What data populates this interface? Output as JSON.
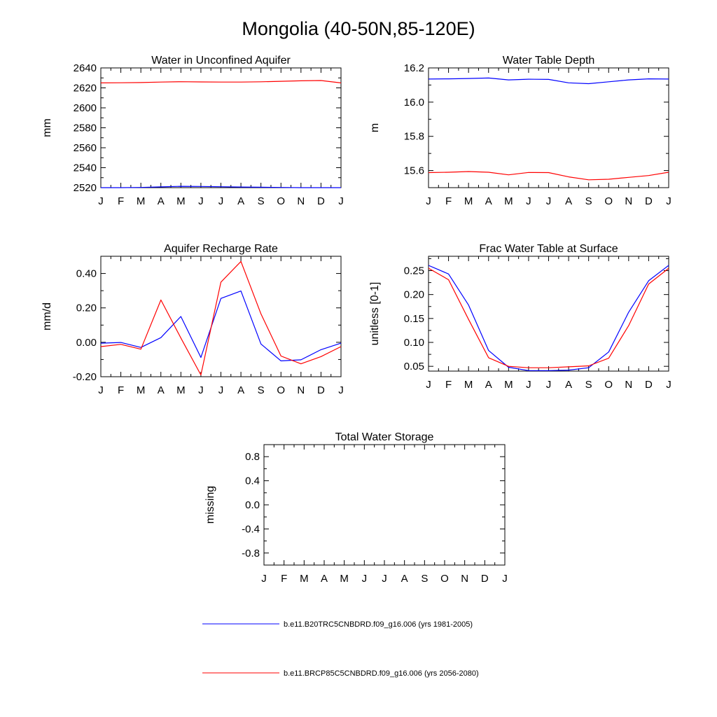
{
  "figure_title": "Mongolia (40-50N,85-120E)",
  "colors": {
    "series_1": "#0000ff",
    "series_2": "#ff0000",
    "axis": "#000000"
  },
  "legend": [
    {
      "label": "b.e11.B20TRC5CNBDRD.f09_g16.006 (yrs 1981-2005)",
      "color": "#0000ff"
    },
    {
      "label": "b.e11.BRCP85C5CNBDRD.f09_g16.006 (yrs 2056-2080)",
      "color": "#ff0000"
    }
  ],
  "chart_data": [
    {
      "type": "line",
      "title": "Water in Unconfined Aquifer",
      "xlabel": "",
      "ylabel": "mm",
      "x_tick_labels": [
        "J",
        "F",
        "M",
        "A",
        "M",
        "J",
        "J",
        "A",
        "S",
        "O",
        "N",
        "D",
        "J"
      ],
      "xlim": [
        0,
        12
      ],
      "ylim": [
        2520,
        2640
      ],
      "yticks": [
        2520,
        2540,
        2560,
        2580,
        2600,
        2620,
        2640
      ],
      "ytick_labels": [
        "2520",
        "2540",
        "2560",
        "2580",
        "2600",
        "2620",
        "2640"
      ],
      "series": [
        {
          "name": "b.e11.B20TRC5CNBDRD.f09_g16.006 (yrs 1981-2005)",
          "color": "#0000ff",
          "values": [
            2520.0,
            2520.0,
            2520.2,
            2520.8,
            2521.3,
            2521.2,
            2520.9,
            2520.6,
            2520.4,
            2520.2,
            2520.0,
            2520.0,
            2520.0
          ]
        },
        {
          "name": "b.e11.BRCP85C5CNBDRD.f09_g16.006 (yrs 2056-2080)",
          "color": "#ff0000",
          "values": [
            2625.0,
            2625.1,
            2625.3,
            2625.8,
            2626.2,
            2626.0,
            2625.8,
            2625.8,
            2626.1,
            2626.6,
            2627.1,
            2627.4,
            2625.0
          ]
        }
      ]
    },
    {
      "type": "line",
      "title": "Water Table Depth",
      "xlabel": "",
      "ylabel": "m",
      "x_tick_labels": [
        "J",
        "F",
        "M",
        "A",
        "M",
        "J",
        "J",
        "A",
        "S",
        "O",
        "N",
        "D",
        "J"
      ],
      "xlim": [
        0,
        12
      ],
      "ylim": [
        15.5,
        16.2
      ],
      "yticks": [
        15.6,
        15.8,
        16.0,
        16.2
      ],
      "ytick_labels": [
        "15.6",
        "15.8",
        "16.0",
        "16.2"
      ],
      "series": [
        {
          "name": "b.e11.B20TRC5CNBDRD.f09_g16.006 (yrs 1981-2005)",
          "color": "#0000ff",
          "values": [
            16.135,
            16.136,
            16.138,
            16.141,
            16.13,
            16.134,
            16.133,
            16.113,
            16.108,
            16.119,
            16.13,
            16.136,
            16.135
          ]
        },
        {
          "name": "b.e11.BRCP85C5CNBDRD.f09_g16.006 (yrs 2056-2080)",
          "color": "#ff0000",
          "values": [
            15.588,
            15.59,
            15.594,
            15.59,
            15.575,
            15.589,
            15.588,
            15.563,
            15.546,
            15.549,
            15.56,
            15.571,
            15.59
          ]
        }
      ]
    },
    {
      "type": "line",
      "title": "Aquifer Recharge Rate",
      "xlabel": "",
      "ylabel": "mm/d",
      "x_tick_labels": [
        "J",
        "F",
        "M",
        "A",
        "M",
        "J",
        "J",
        "A",
        "S",
        "O",
        "N",
        "D",
        "J"
      ],
      "xlim": [
        0,
        12
      ],
      "ylim": [
        -0.2,
        0.5
      ],
      "yticks": [
        -0.2,
        0.0,
        0.2,
        0.4
      ],
      "ytick_labels": [
        "-0.20",
        "0.00",
        "0.20",
        "0.40"
      ],
      "series": [
        {
          "name": "b.e11.B20TRC5CNBDRD.f09_g16.006 (yrs 1981-2005)",
          "color": "#0000ff",
          "values": [
            -0.005,
            -0.001,
            -0.03,
            0.027,
            0.15,
            -0.088,
            0.255,
            0.298,
            -0.01,
            -0.108,
            -0.102,
            -0.043,
            -0.005
          ]
        },
        {
          "name": "b.e11.BRCP85C5CNBDRD.f09_g16.006 (yrs 2056-2080)",
          "color": "#ff0000",
          "values": [
            -0.025,
            -0.012,
            -0.04,
            0.246,
            0.025,
            -0.19,
            0.35,
            0.47,
            0.165,
            -0.08,
            -0.125,
            -0.083,
            -0.025
          ]
        }
      ]
    },
    {
      "type": "line",
      "title": "Frac Water Table at Surface",
      "xlabel": "",
      "ylabel": "unitless [0-1]",
      "x_tick_labels": [
        "J",
        "F",
        "M",
        "A",
        "M",
        "J",
        "J",
        "A",
        "S",
        "O",
        "N",
        "D",
        "J"
      ],
      "xlim": [
        0,
        12
      ],
      "ylim": [
        0.04,
        0.28
      ],
      "yticks": [
        0.05,
        0.1,
        0.15,
        0.2,
        0.25
      ],
      "ytick_labels": [
        "0.05",
        "0.10",
        "0.15",
        "0.20",
        "0.25"
      ],
      "series": [
        {
          "name": "b.e11.B20TRC5CNBDRD.f09_g16.006 (yrs 1981-2005)",
          "color": "#0000ff",
          "values": [
            0.261,
            0.243,
            0.178,
            0.083,
            0.048,
            0.041,
            0.041,
            0.042,
            0.047,
            0.08,
            0.163,
            0.229,
            0.261
          ]
        },
        {
          "name": "b.e11.BRCP85C5CNBDRD.f09_g16.006 (yrs 2056-2080)",
          "color": "#ff0000",
          "values": [
            0.255,
            0.231,
            0.148,
            0.068,
            0.05,
            0.047,
            0.047,
            0.049,
            0.051,
            0.067,
            0.135,
            0.222,
            0.255
          ]
        }
      ]
    },
    {
      "type": "line",
      "title": "Total Water Storage",
      "xlabel": "",
      "ylabel": "missing",
      "x_tick_labels": [
        "J",
        "F",
        "M",
        "A",
        "M",
        "J",
        "J",
        "A",
        "S",
        "O",
        "N",
        "D",
        "J"
      ],
      "xlim": [
        0,
        12
      ],
      "ylim": [
        -1.0,
        1.0
      ],
      "yticks": [
        -0.8,
        -0.4,
        0.0,
        0.4,
        0.8
      ],
      "ytick_labels": [
        "-0.8",
        "-0.4",
        "0.0",
        "0.4",
        "0.8"
      ],
      "series": []
    }
  ]
}
